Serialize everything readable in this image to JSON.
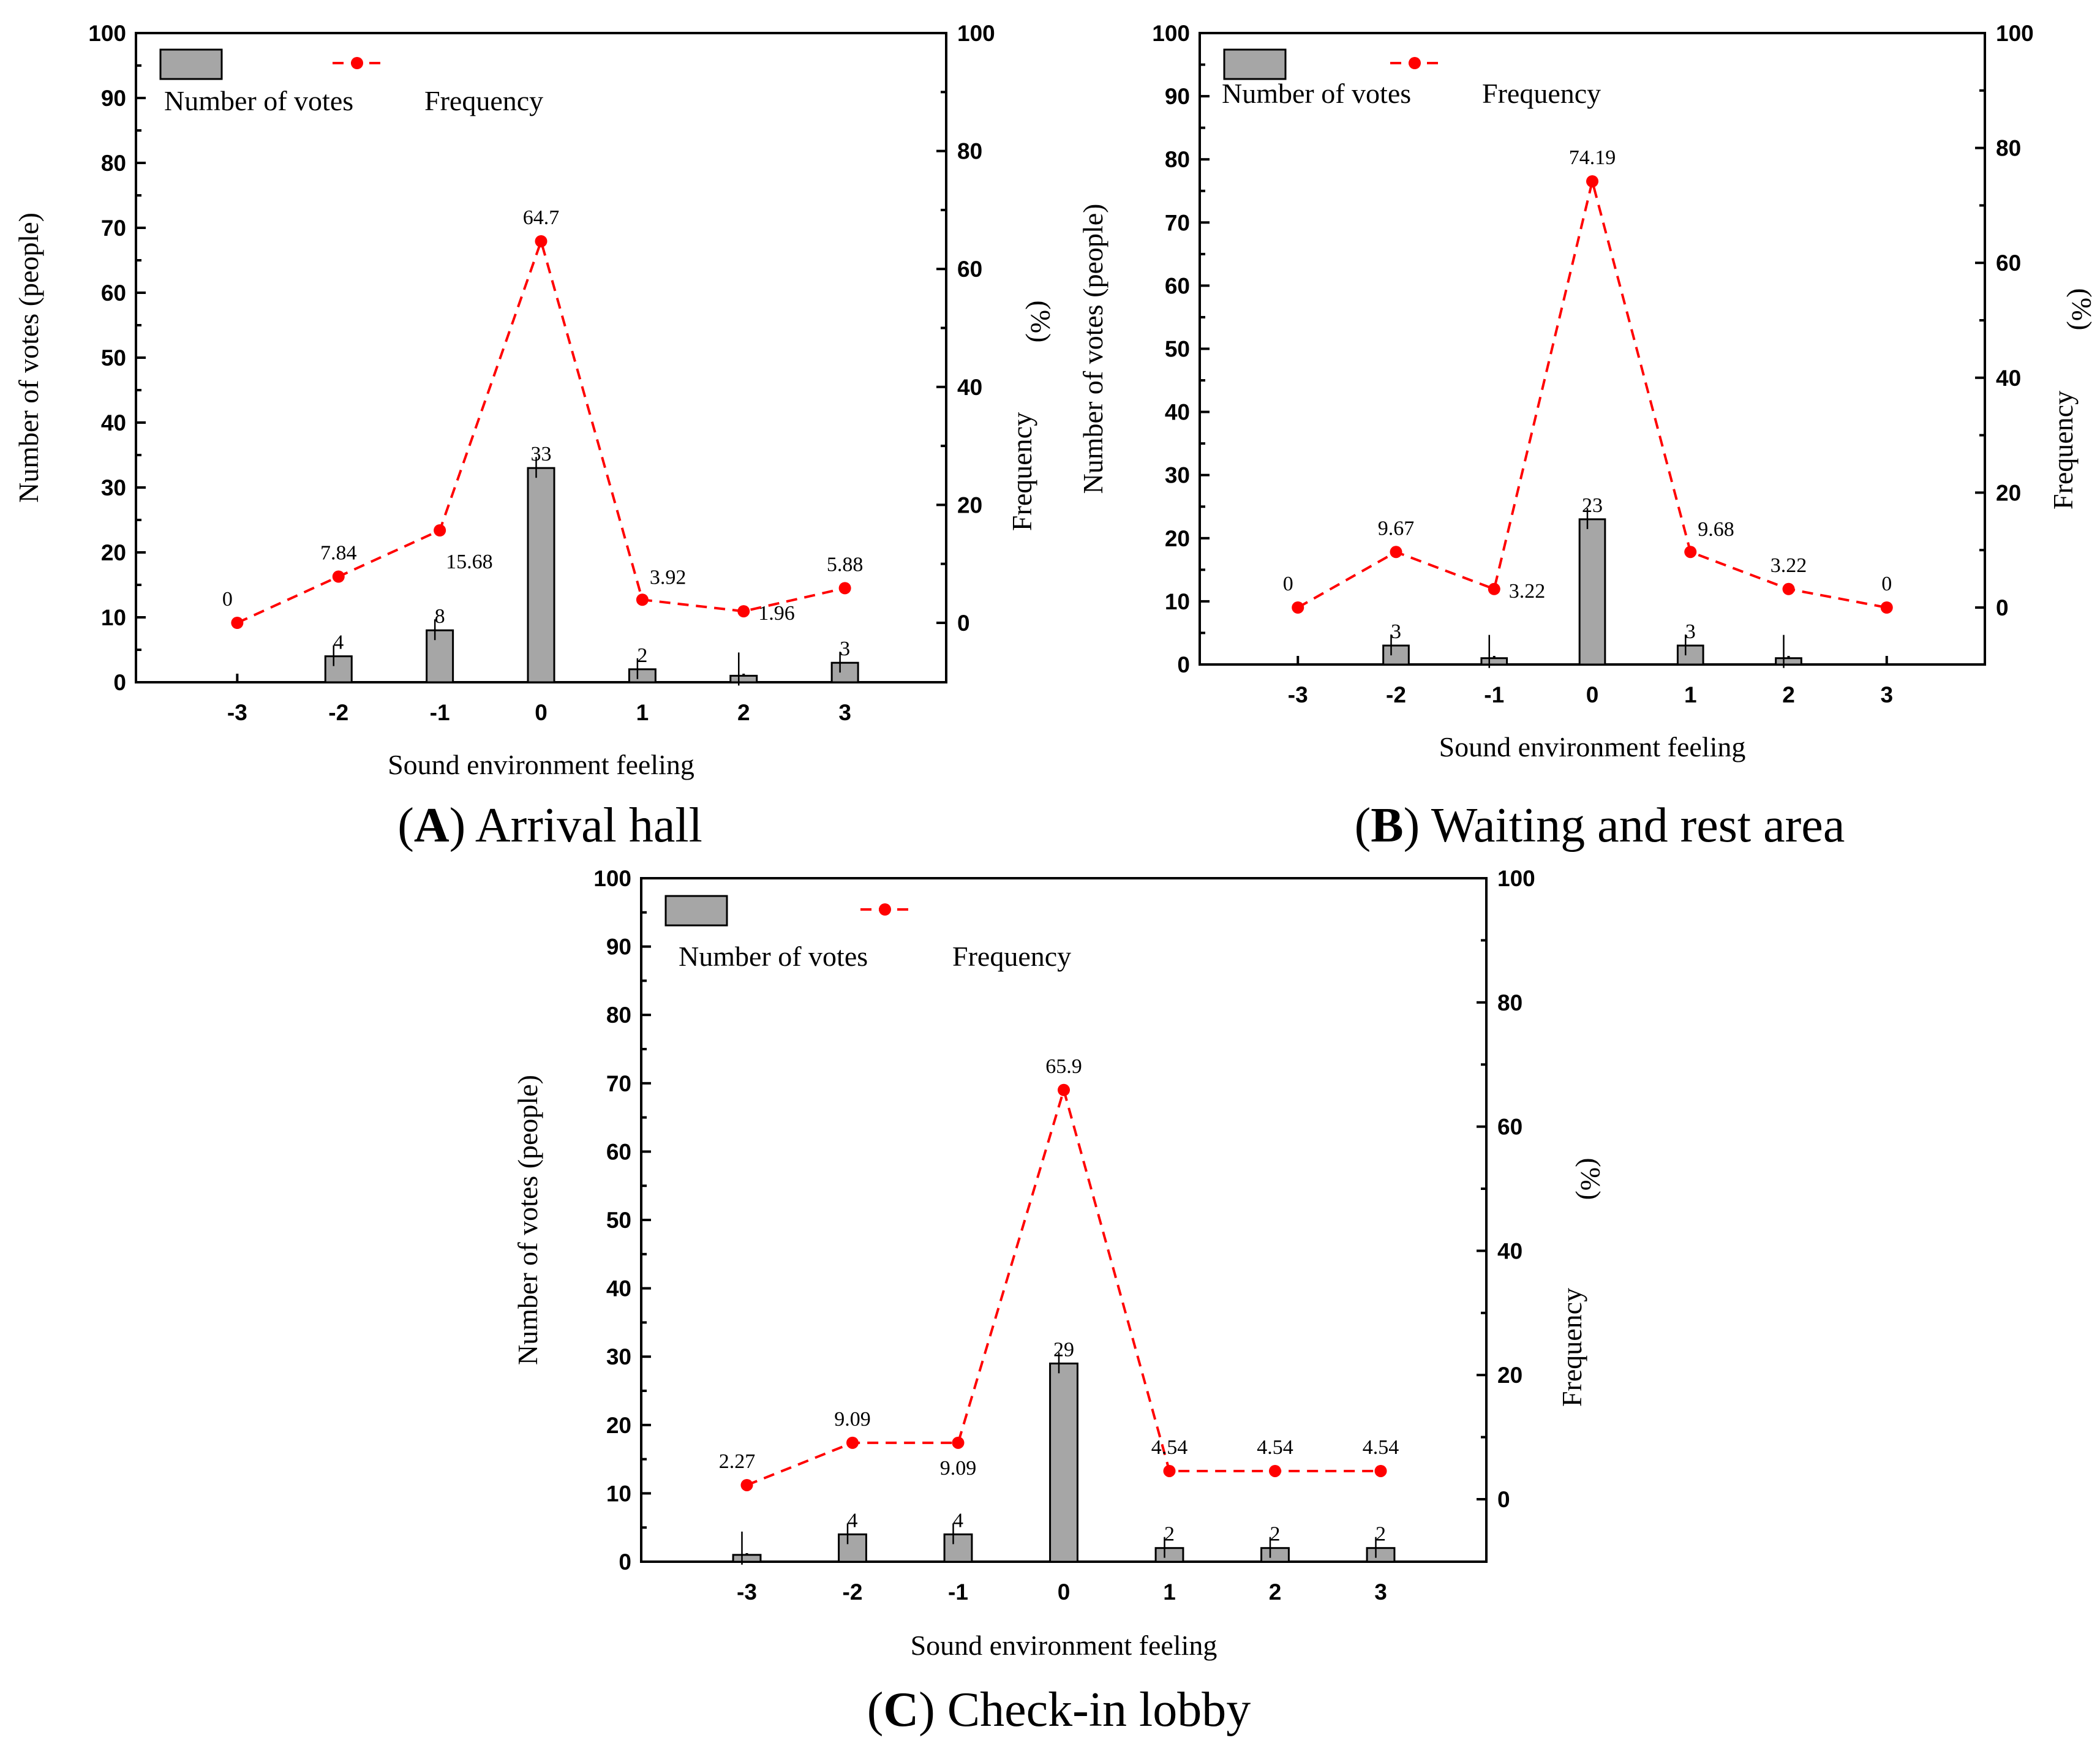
{
  "chart_data": [
    {
      "id": "A",
      "type": "bar",
      "caption_letter": "A",
      "caption_text": "Arrival hall",
      "categories": [
        "-3",
        "-2",
        "-1",
        "0",
        "1",
        "2",
        "3"
      ],
      "series": [
        {
          "name": "Number of votes",
          "type": "bar",
          "axis": "left",
          "values": [
            0,
            4,
            8,
            33,
            2,
            1,
            3
          ],
          "labels": [
            "",
            "4",
            "8",
            "33",
            "2",
            "",
            "3"
          ]
        },
        {
          "name": "Frequency",
          "type": "line",
          "axis": "right",
          "values": [
            0,
            7.84,
            15.68,
            64.7,
            3.92,
            1.96,
            5.88
          ],
          "labels": [
            "0",
            "7.84",
            "15.68",
            "64.7",
            "3.92",
            "1.96",
            "5.88"
          ]
        }
      ],
      "xlabel": "Sound environment feeling",
      "ylabel_left": "Number of votes (people)",
      "ylabel_right_word": "Frequency",
      "ylabel_right_unit": "(%)",
      "ylim_left": [
        0,
        100
      ],
      "yticks_left": [
        "0",
        "10",
        "20",
        "30",
        "40",
        "50",
        "60",
        "70",
        "80",
        "90",
        "100"
      ],
      "ylim_right": [
        -10,
        100
      ],
      "yticks_right": [
        "0",
        "20",
        "40",
        "60",
        "80",
        "100"
      ],
      "legend": {
        "bar_label": "Number of votes",
        "line_label": "Frequency",
        "placement": "top-left"
      },
      "colors": {
        "bar": "#a6a6a6",
        "line": "#ff0000"
      }
    },
    {
      "id": "B",
      "type": "bar",
      "caption_letter": "B",
      "caption_text": "Waiting and rest area",
      "categories": [
        "-3",
        "-2",
        "-1",
        "0",
        "1",
        "2",
        "3"
      ],
      "series": [
        {
          "name": "Number of votes",
          "type": "bar",
          "axis": "left",
          "values": [
            0,
            3,
            1,
            23,
            3,
            1,
            0
          ],
          "labels": [
            "",
            "3",
            "",
            "23",
            "3",
            "",
            ""
          ]
        },
        {
          "name": "Frequency",
          "type": "line",
          "axis": "right",
          "values": [
            0,
            9.67,
            3.22,
            74.19,
            9.68,
            3.22,
            0
          ],
          "labels": [
            "0",
            "9.67",
            "3.22",
            "74.19",
            "9.68",
            "3.22",
            "0"
          ]
        }
      ],
      "xlabel": "Sound environment feeling",
      "ylabel_left": "Number of votes (people)",
      "ylabel_right_word": "Frequency",
      "ylabel_right_unit": "(%)",
      "ylim_left": [
        0,
        100
      ],
      "yticks_left": [
        "0",
        "10",
        "20",
        "30",
        "40",
        "50",
        "60",
        "70",
        "80",
        "90",
        "100"
      ],
      "ylim_right": [
        -10,
        100
      ],
      "yticks_right": [
        "0",
        "20",
        "40",
        "60",
        "80",
        "100"
      ],
      "legend": {
        "bar_label": "Number of votes",
        "line_label": "Frequency",
        "placement": "top-left"
      },
      "colors": {
        "bar": "#a6a6a6",
        "line": "#ff0000"
      }
    },
    {
      "id": "C",
      "type": "bar",
      "caption_letter": "C",
      "caption_text": "Check-in lobby",
      "categories": [
        "-3",
        "-2",
        "-1",
        "0",
        "1",
        "2",
        "3"
      ],
      "series": [
        {
          "name": "Number of votes",
          "type": "bar",
          "axis": "left",
          "values": [
            1,
            4,
            4,
            29,
            2,
            2,
            2
          ],
          "labels": [
            "",
            "4",
            "4",
            "29",
            "2",
            "2",
            "2"
          ]
        },
        {
          "name": "Frequency",
          "type": "line",
          "axis": "right",
          "values": [
            2.27,
            9.09,
            9.09,
            65.9,
            4.54,
            4.54,
            4.54
          ],
          "labels": [
            "2.27",
            "9.09",
            "9.09",
            "65.9",
            "4.54",
            "4.54",
            "4.54"
          ]
        }
      ],
      "xlabel": "Sound environment feeling",
      "ylabel_left": "Number of votes (people)",
      "ylabel_right_word": "Frequency",
      "ylabel_right_unit": "(%)",
      "ylim_left": [
        0,
        100
      ],
      "yticks_left": [
        "0",
        "10",
        "20",
        "30",
        "40",
        "50",
        "60",
        "70",
        "80",
        "90",
        "100"
      ],
      "ylim_right": [
        -10,
        100
      ],
      "yticks_right": [
        "0",
        "20",
        "40",
        "60",
        "80",
        "100"
      ],
      "legend": {
        "bar_label": "Number of votes",
        "line_label": "Frequency",
        "placement": "top-left"
      },
      "colors": {
        "bar": "#a6a6a6",
        "line": "#ff0000"
      }
    }
  ]
}
